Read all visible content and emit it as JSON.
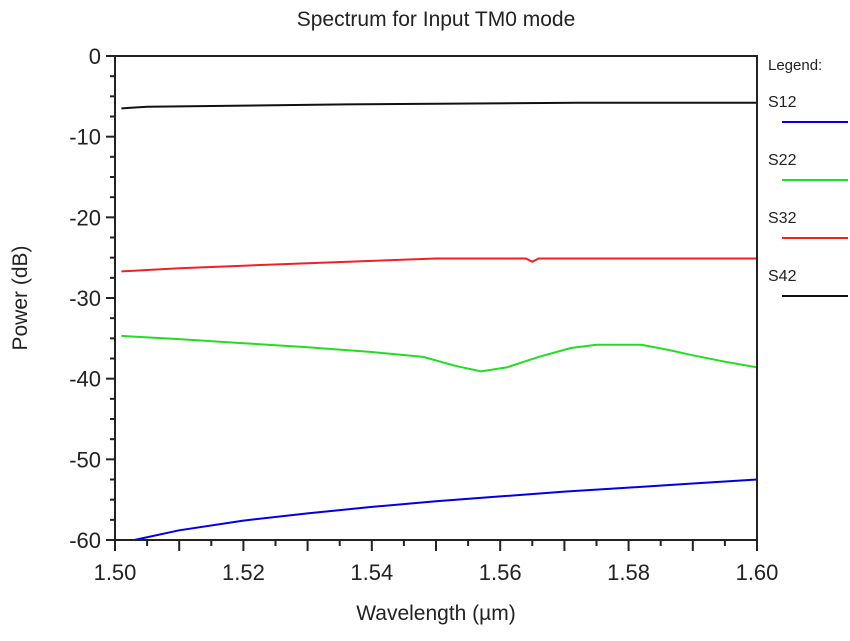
{
  "chart_data": {
    "type": "line",
    "title": "Spectrum for Input TM0 mode",
    "xlabel": "Wavelength (µm)",
    "ylabel": "Power (dB)",
    "xlim": [
      1.5,
      1.6
    ],
    "ylim": [
      -60,
      0
    ],
    "xticks": [
      "1.50",
      "1.52",
      "1.54",
      "1.56",
      "1.58",
      "1.60"
    ],
    "yticks": [
      "0",
      "-10",
      "-20",
      "-30",
      "-40",
      "-50",
      "-60"
    ],
    "grid": false,
    "legend": {
      "title": "Legend:",
      "placement": "right"
    },
    "series": [
      {
        "name": "S12",
        "color": "#0000e0",
        "x": [
          1.503,
          1.51,
          1.52,
          1.53,
          1.54,
          1.55,
          1.56,
          1.57,
          1.58,
          1.59,
          1.6
        ],
        "y": [
          -60,
          -58.8,
          -57.6,
          -56.7,
          -55.9,
          -55.2,
          -54.6,
          -54.0,
          -53.5,
          -53.0,
          -52.5
        ]
      },
      {
        "name": "S22",
        "color": "#22dd22",
        "x": [
          1.501,
          1.51,
          1.52,
          1.53,
          1.54,
          1.548,
          1.553,
          1.557,
          1.561,
          1.566,
          1.571,
          1.575,
          1.582,
          1.586,
          1.59,
          1.595,
          1.6
        ],
        "y": [
          -34.7,
          -35.1,
          -35.6,
          -36.1,
          -36.7,
          -37.3,
          -38.4,
          -39.1,
          -38.6,
          -37.3,
          -36.2,
          -35.8,
          -35.8,
          -36.4,
          -37.1,
          -37.9,
          -38.6
        ]
      },
      {
        "name": "S32",
        "color": "#ee2222",
        "x": [
          1.501,
          1.51,
          1.52,
          1.53,
          1.54,
          1.55,
          1.564,
          1.565,
          1.566,
          1.6
        ],
        "y": [
          -26.7,
          -26.3,
          -26.0,
          -25.7,
          -25.4,
          -25.1,
          -25.1,
          -25.5,
          -25.1,
          -25.1
        ]
      },
      {
        "name": "S42",
        "color": "#111111",
        "x": [
          1.501,
          1.505,
          1.536,
          1.572,
          1.6
        ],
        "y": [
          -6.5,
          -6.3,
          -6.0,
          -5.8,
          -5.8
        ]
      }
    ]
  }
}
